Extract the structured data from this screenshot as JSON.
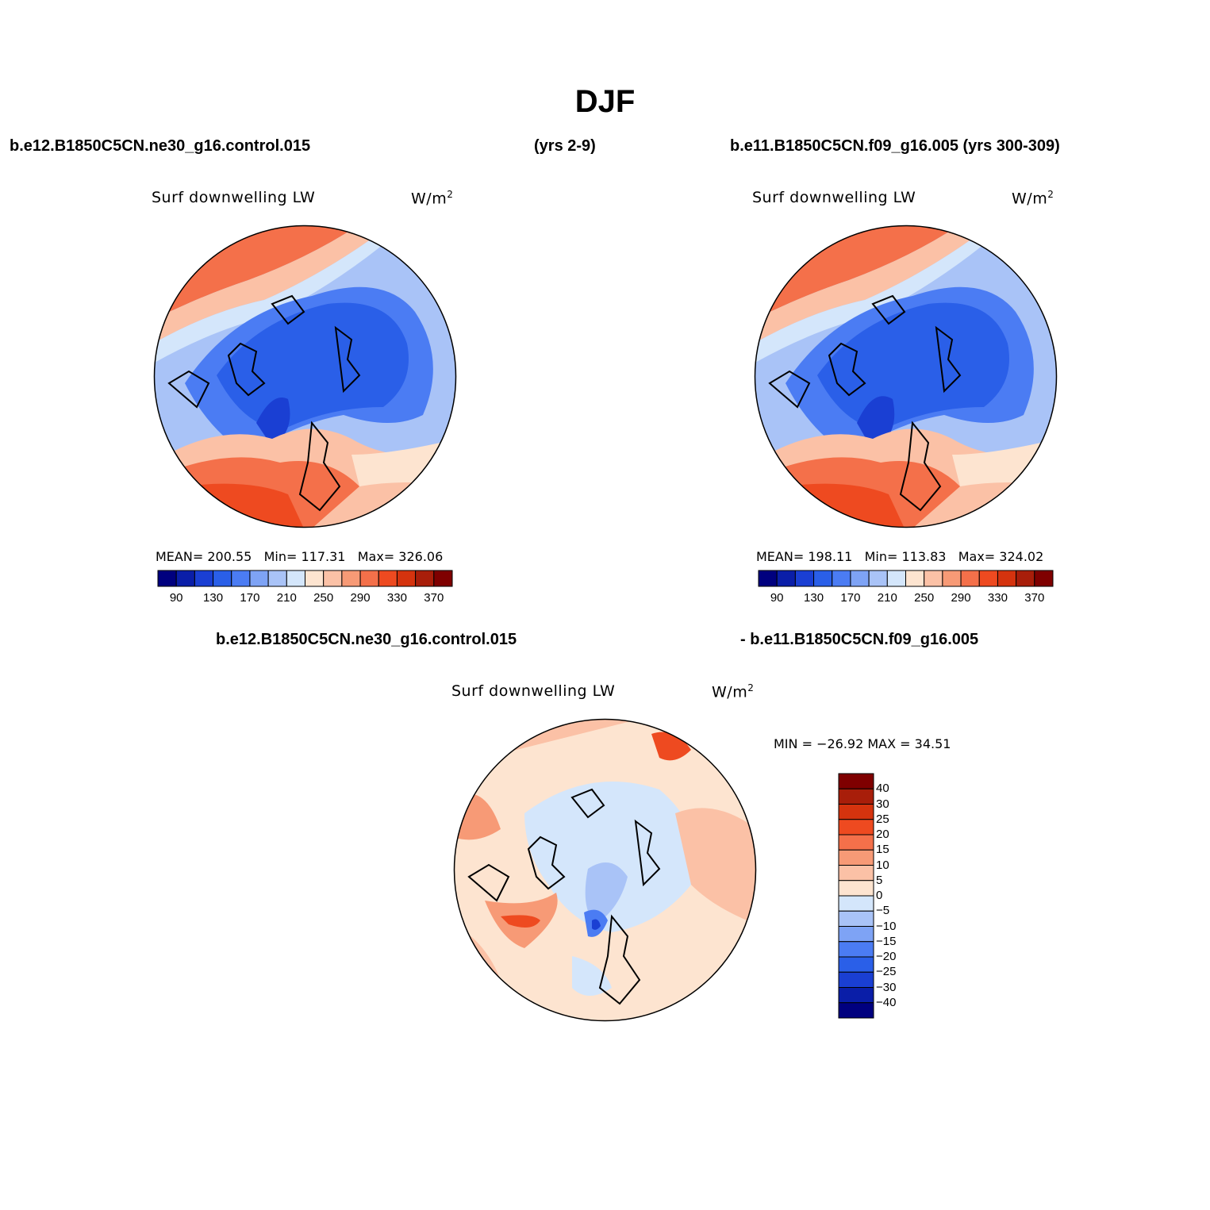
{
  "season_title": "DJF",
  "top_left_case": "b.e12.B1850C5CN.ne30_g16.control.015",
  "top_left_years": "(yrs 2-9)",
  "top_right_case": "b.e11.B1850C5CN.f09_g16.005 (yrs 300-309)",
  "diff_case_a": "b.e12.B1850C5CN.ne30_g16.control.015",
  "diff_case_b": "- b.e11.B1850C5CN.f09_g16.005",
  "panels": {
    "left": {
      "variable": "Surf downwelling LW",
      "units": "W/m",
      "units_sup": "2",
      "mean_label": "MEAN=",
      "mean": "200.55",
      "min_label": "Min=",
      "min": "117.31",
      "max_label": "Max=",
      "max": "326.06"
    },
    "right": {
      "variable": "Surf downwelling LW",
      "units": "W/m",
      "units_sup": "2",
      "mean_label": "MEAN=",
      "mean": "198.11",
      "min_label": "Min=",
      "min": "113.83",
      "max_label": "Max=",
      "max": "324.02"
    },
    "diff": {
      "variable": "Surf downwelling LW",
      "units": "W/m",
      "units_sup": "2",
      "minmax": "MIN = −26.92 MAX =   34.51"
    }
  },
  "colorbar_abs": {
    "colors": [
      "#00007f",
      "#0a1ea8",
      "#1a3fd3",
      "#2a5fe8",
      "#4b7cf3",
      "#7ea3f5",
      "#a9c3f7",
      "#d4e6fb",
      "#fde4d0",
      "#fbc1a6",
      "#f79a76",
      "#f4704a",
      "#ee4a20",
      "#d5330e",
      "#a81e0a",
      "#7f0000"
    ],
    "ticks": [
      "90",
      "130",
      "170",
      "210",
      "250",
      "290",
      "330",
      "370"
    ]
  },
  "colorbar_diff": {
    "colors": [
      "#00007f",
      "#0a1ea8",
      "#1a3fd3",
      "#2a5fe8",
      "#4b7cf3",
      "#7ea3f5",
      "#a9c3f7",
      "#d4e6fb",
      "#fde4d0",
      "#fbc1a6",
      "#f79a76",
      "#f4704a",
      "#ee4a20",
      "#d5330e",
      "#a81e0a",
      "#7f0000"
    ],
    "ticks": [
      "40",
      "30",
      "25",
      "20",
      "15",
      "10",
      "5",
      "0",
      "−5",
      "−10",
      "−15",
      "−20",
      "−25",
      "−30",
      "−40"
    ]
  }
}
